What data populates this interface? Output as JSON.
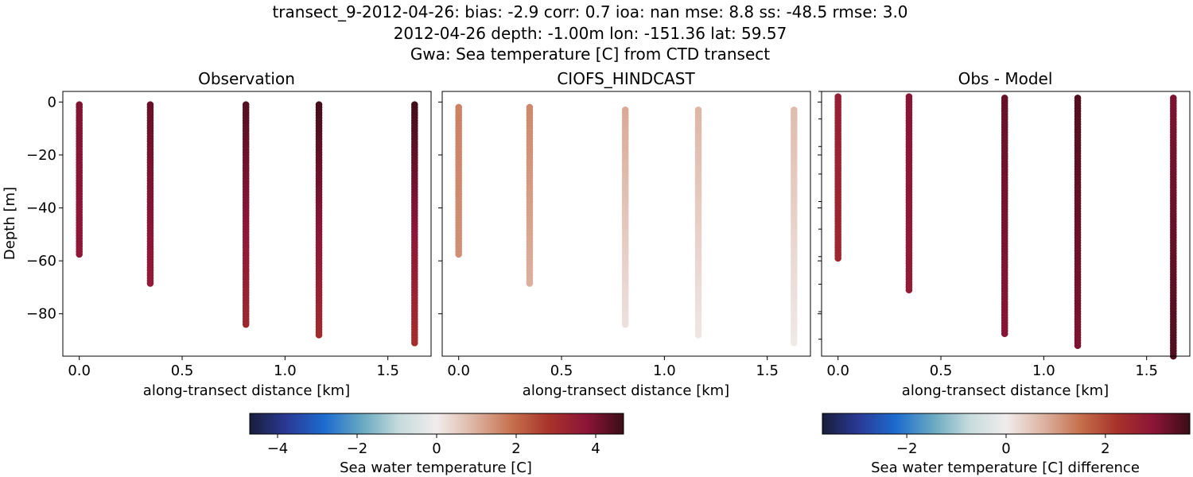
{
  "title_lines": [
    "transect_9-2012-04-26: bias: -2.9  corr: 0.7  ioa: nan  mse: 8.8  ss: -48.5  rmse: 3.0",
    "2012-04-26 depth: -1.00m lon: -151.36 lat: 59.57",
    "Gwa: Sea temperature [C] from CTD transect"
  ],
  "chart_data": [
    {
      "type": "scatter",
      "title": "Observation",
      "xlabel": "along-transect distance [km]",
      "ylabel": "Depth [m]",
      "xlim": [
        -0.08,
        1.71
      ],
      "ylim": [
        -96,
        4
      ],
      "xticks": [
        0.0,
        0.5,
        1.0,
        1.5
      ],
      "xtick_labels": [
        "0.0",
        "0.5",
        "1.0",
        "1.5"
      ],
      "yticks": [
        0,
        -20,
        -40,
        -60,
        -80
      ],
      "ytick_labels": [
        "0",
        "−20",
        "−40",
        "−60",
        "−80"
      ],
      "color_range": [
        -4.7,
        4.7
      ],
      "profiles": [
        {
          "x": 0.0,
          "depth_top": -1,
          "depth_bottom": -57.5,
          "value_top": 3.9,
          "value_bottom": 3.7
        },
        {
          "x": 0.345,
          "depth_top": -1,
          "depth_bottom": -68.5,
          "value_top": 4.2,
          "value_bottom": 3.6
        },
        {
          "x": 0.81,
          "depth_top": -1,
          "depth_bottom": -84,
          "value_top": 4.4,
          "value_bottom": 3.2
        },
        {
          "x": 1.165,
          "depth_top": -1,
          "depth_bottom": -88,
          "value_top": 4.6,
          "value_bottom": 3.1
        },
        {
          "x": 1.63,
          "depth_top": -1,
          "depth_bottom": -91,
          "value_top": 4.6,
          "value_bottom": 3.0
        }
      ]
    },
    {
      "type": "scatter",
      "title": "CIOFS_HINDCAST",
      "xlabel": "along-transect distance [km]",
      "ylabel": "",
      "xlim": [
        -0.08,
        1.71
      ],
      "ylim": [
        -96,
        4
      ],
      "xticks": [
        0.0,
        0.5,
        1.0,
        1.5
      ],
      "xtick_labels": [
        "0.0",
        "0.5",
        "1.0",
        "1.5"
      ],
      "yticks": [
        0,
        -20,
        -40,
        -60,
        -80
      ],
      "ytick_labels": [],
      "color_range": [
        -4.7,
        4.7
      ],
      "profiles": [
        {
          "x": 0.0,
          "depth_top": -2,
          "depth_bottom": -57.5,
          "value_top": 1.65,
          "value_bottom": 1.45
        },
        {
          "x": 0.345,
          "depth_top": -2,
          "depth_bottom": -68.5,
          "value_top": 1.55,
          "value_bottom": 1.0
        },
        {
          "x": 0.81,
          "depth_top": -3,
          "depth_bottom": -84,
          "value_top": 1.1,
          "value_bottom": 0.2
        },
        {
          "x": 1.165,
          "depth_top": -3,
          "depth_bottom": -88,
          "value_top": 0.9,
          "value_bottom": 0.1
        },
        {
          "x": 1.63,
          "depth_top": -3,
          "depth_bottom": -91,
          "value_top": 0.8,
          "value_bottom": 0.05
        }
      ]
    },
    {
      "type": "scatter",
      "title": "Obs - Model",
      "xlabel": "along-transect distance [km]",
      "ylabel": "",
      "xlim": [
        -0.08,
        1.71
      ],
      "ylim": [
        -96,
        4
      ],
      "xticks": [
        0.0,
        0.5,
        1.0,
        1.5
      ],
      "xtick_labels": [
        "0.0",
        "0.5",
        "1.0",
        "1.5"
      ],
      "yticks": [
        0,
        -20,
        -40,
        -60,
        -80
      ],
      "ytick_labels": [],
      "color_range": [
        -3.7,
        3.7
      ],
      "profiles": [
        {
          "x": 0.0,
          "depth_top": 2,
          "depth_bottom": -59,
          "value_top": 2.7,
          "value_bottom": 2.5
        },
        {
          "x": 0.345,
          "depth_top": 2,
          "depth_bottom": -71,
          "value_top": 3.0,
          "value_bottom": 2.8
        },
        {
          "x": 0.81,
          "depth_top": 1.5,
          "depth_bottom": -87.5,
          "value_top": 3.3,
          "value_bottom": 3.0
        },
        {
          "x": 1.165,
          "depth_top": 1.5,
          "depth_bottom": -92,
          "value_top": 3.5,
          "value_bottom": 3.1
        },
        {
          "x": 1.63,
          "depth_top": 1.5,
          "depth_bottom": -96,
          "value_top": 3.1,
          "value_bottom": 3.5
        }
      ]
    }
  ],
  "colorbars": [
    {
      "label": "Sea water temperature [C]",
      "range": [
        -4.7,
        4.7
      ],
      "ticks": [
        -4,
        -2,
        0,
        2,
        4
      ],
      "tick_labels": [
        "−4",
        "−2",
        "0",
        "2",
        "4"
      ]
    },
    {
      "label": "Sea water temperature [C] difference",
      "range": [
        -3.7,
        3.7
      ],
      "ticks": [
        -2,
        0,
        2
      ],
      "tick_labels": [
        "−2",
        "0",
        "2"
      ]
    }
  ],
  "colormap": {
    "name": "balance",
    "stops": [
      "#191d3b",
      "#2a3a96",
      "#1d6bcf",
      "#67a8c1",
      "#c6dbdc",
      "#f1ecec",
      "#ddb4a3",
      "#c6714e",
      "#a8332a",
      "#8c1538",
      "#3a0d17"
    ]
  }
}
